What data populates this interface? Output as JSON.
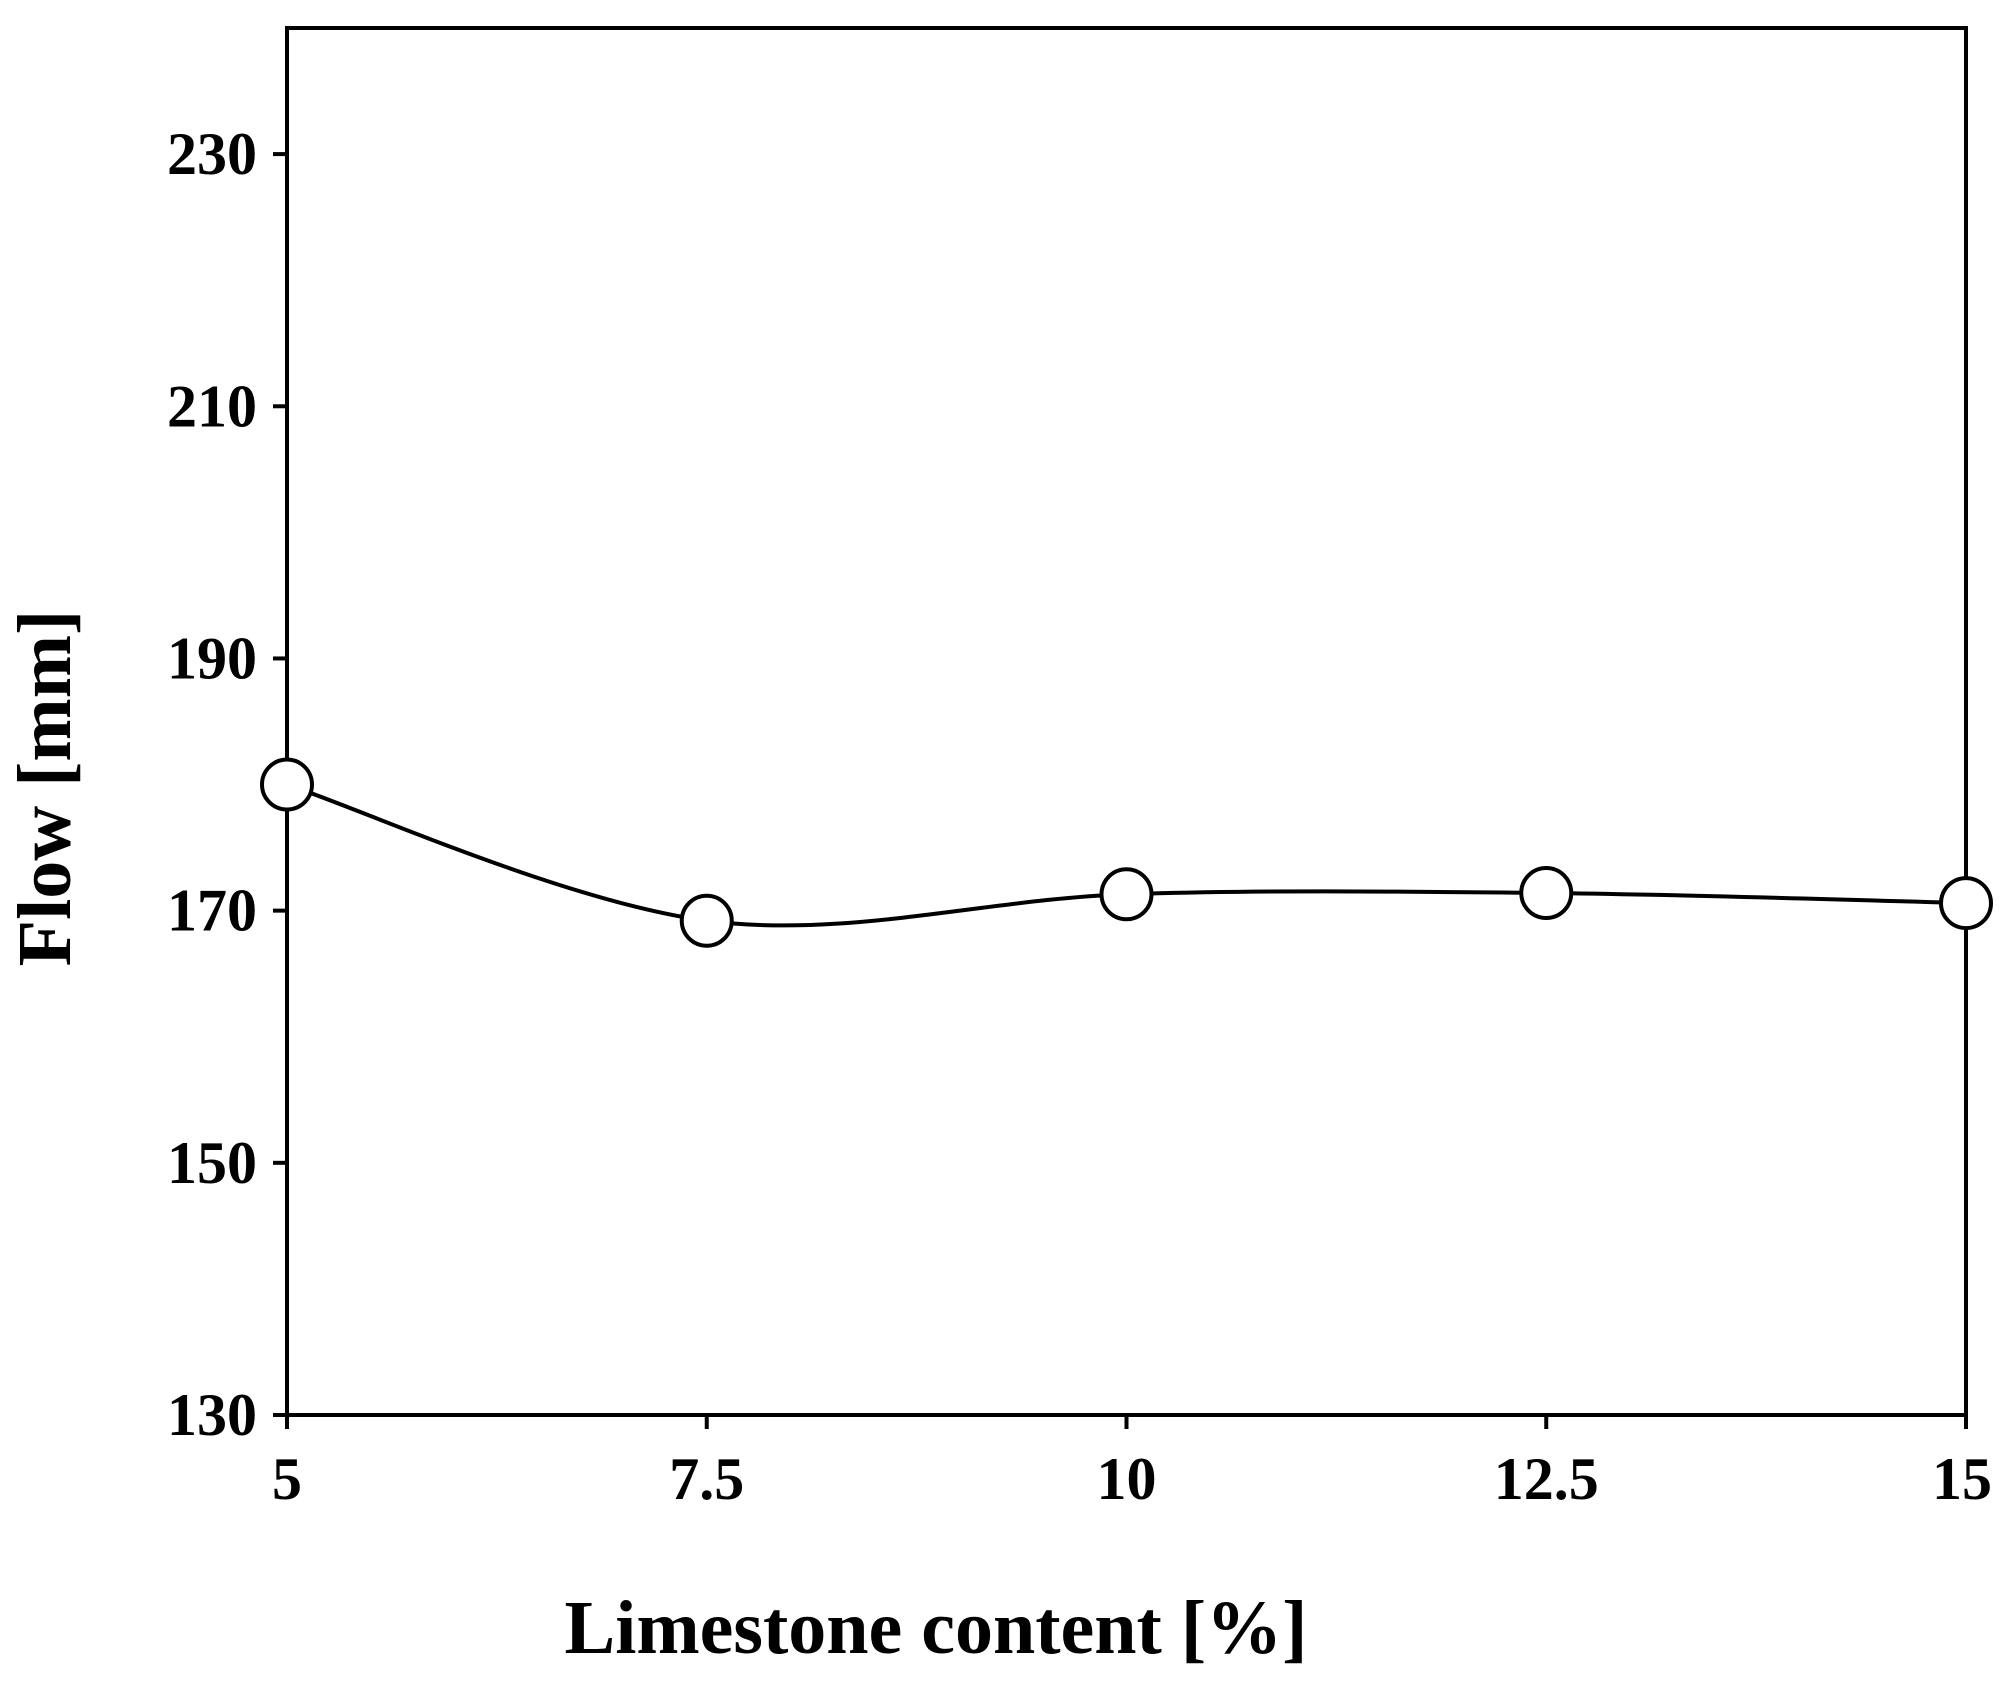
{
  "chart_data": {
    "type": "line",
    "title": "",
    "xlabel": "Limestone content [%]",
    "ylabel": "Flow [mm]",
    "x": [
      5,
      7.5,
      10,
      12.5,
      15
    ],
    "series": [
      {
        "values": [
          180,
          169.2,
          171.3,
          171.4,
          170.6
        ]
      }
    ],
    "xlim": [
      5,
      15
    ],
    "ylim": [
      130,
      240
    ],
    "xticks": [
      "5",
      "7.5",
      "10",
      "12.5",
      "15"
    ],
    "yticks": [
      "130",
      "150",
      "170",
      "190",
      "210",
      "230"
    ],
    "ytick_values": [
      130,
      150,
      170,
      190,
      210,
      230
    ],
    "grid": false,
    "legend": "none",
    "line_style": "smoothed",
    "marker": "open-circle",
    "colors": {
      "line": "#000000",
      "marker_fill": "#ffffff",
      "axis": "#000000"
    }
  }
}
